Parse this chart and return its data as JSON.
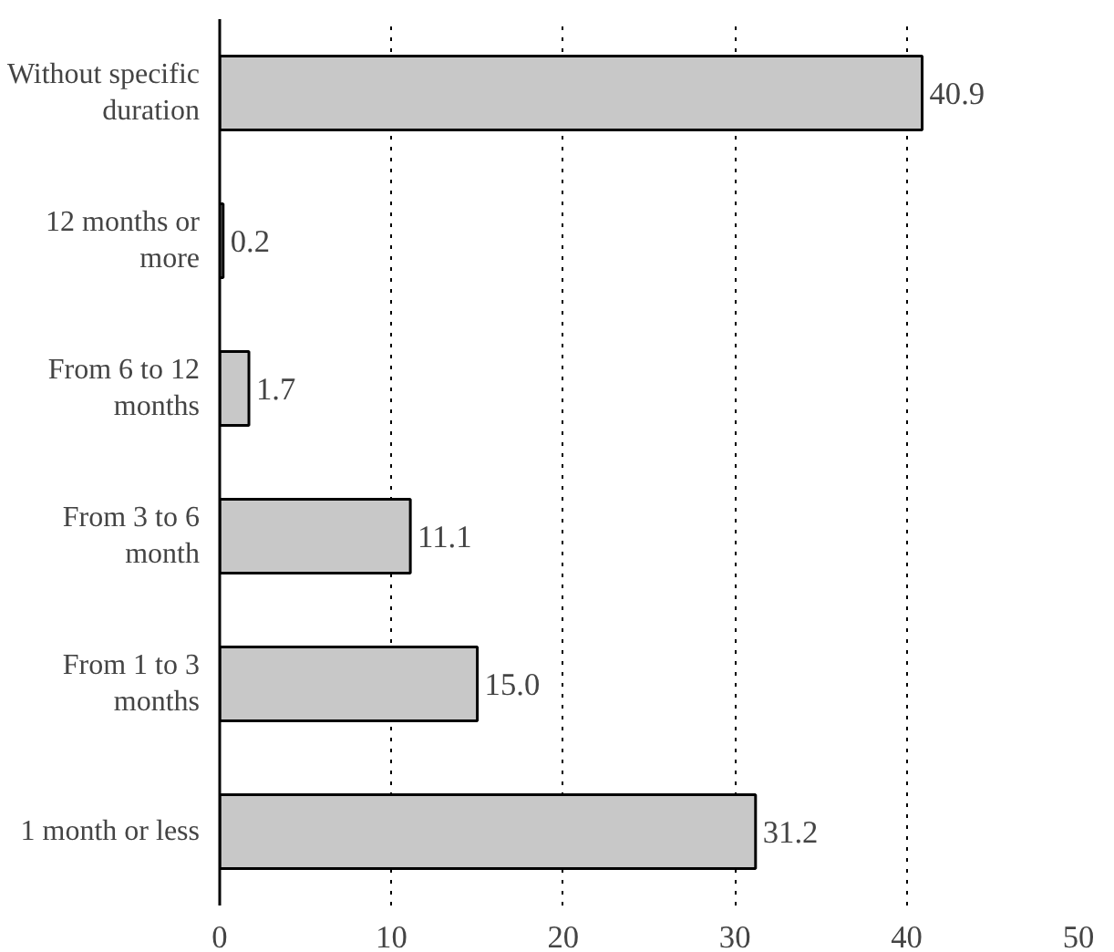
{
  "chart_data": {
    "type": "bar",
    "orientation": "horizontal",
    "categories": [
      "Without specific\nduration",
      "12 months or\nmore",
      "From 6 to 12\nmonths",
      "From 3 to 6\nmonth",
      "From 1 to 3\nmonths",
      "1 month or less"
    ],
    "values": [
      40.9,
      0.2,
      1.7,
      11.1,
      15.0,
      31.2
    ],
    "value_labels": [
      "40.9",
      "0.2",
      "1.7",
      "11.1",
      "15.0",
      "31.2"
    ],
    "color": "#c8c8c8",
    "xlim": [
      0,
      50
    ],
    "xticks": [
      0,
      10,
      20,
      30,
      40,
      50
    ],
    "grid": "x",
    "line_style": "dotted"
  }
}
